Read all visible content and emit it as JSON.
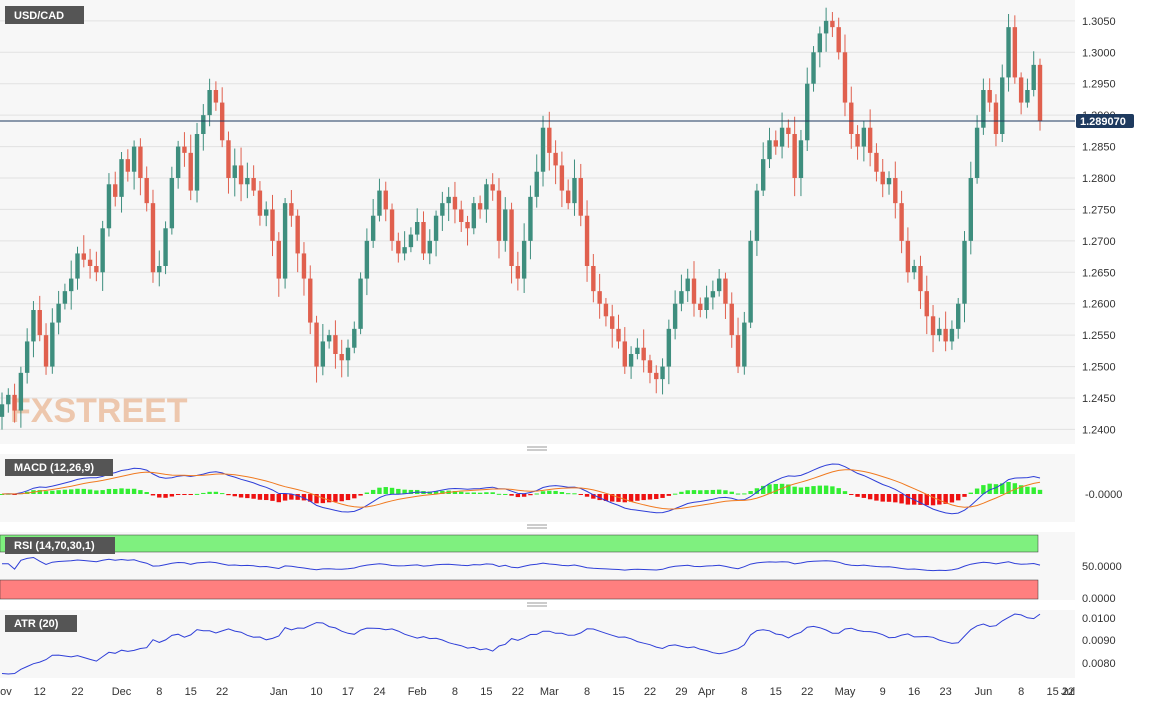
{
  "colors": {
    "up": "#3e8e7e",
    "down": "#e0604e",
    "macd_line": "#2f3fd8",
    "signal_line": "#f07a20",
    "hist_pos": "#33ee33",
    "hist_neg": "#ee1111",
    "rsi_line": "#2f3fd8",
    "overbought": "#7ff07f",
    "oversold": "#ff7f7f",
    "atr_line": "#2f3fd8",
    "label_bg": "#555555",
    "price_line": "#1e3a5f"
  },
  "chart_data": [
    {
      "type": "candlestick",
      "title": "USD/CAD",
      "watermark": "FXSTREET",
      "ylim": [
        1.238,
        1.308
      ],
      "yticks": [
        "1.2400",
        "1.2450",
        "1.2500",
        "1.2550",
        "1.2600",
        "1.2650",
        "1.2700",
        "1.2750",
        "1.2800",
        "1.2850",
        "1.2900",
        "1.2950",
        "1.3000",
        "1.3050"
      ],
      "current_price": 1.28907,
      "current_price_label": "1.289070",
      "xticks": [
        "Nov",
        "12",
        "22",
        "Dec",
        "8",
        "15",
        "22",
        "Jan",
        "10",
        "17",
        "24",
        "Feb",
        "8",
        "15",
        "22",
        "Mar",
        "8",
        "15",
        "22",
        "29",
        "Apr",
        "8",
        "15",
        "22",
        "May",
        "9",
        "16",
        "23",
        "Jun",
        "8",
        "15",
        "22",
        "Jul"
      ],
      "xtick_index": [
        0,
        6,
        12,
        19,
        25,
        30,
        35,
        44,
        50,
        55,
        60,
        66,
        72,
        77,
        82,
        87,
        93,
        98,
        103,
        108,
        112,
        118,
        123,
        128,
        134,
        140,
        145,
        150,
        156,
        162,
        167,
        172,
        180
      ],
      "series_sketch": {
        "closes": [
          1.244,
          1.2455,
          1.243,
          1.249,
          1.254,
          1.259,
          1.255,
          1.25,
          1.257,
          1.26,
          1.262,
          1.264,
          1.268,
          1.267,
          1.266,
          1.265,
          1.272,
          1.279,
          1.277,
          1.283,
          1.281,
          1.285,
          1.28,
          1.276,
          1.265,
          1.266,
          1.272,
          1.28,
          1.285,
          1.284,
          1.278,
          1.287,
          1.29,
          1.294,
          1.292,
          1.286,
          1.28,
          1.282,
          1.279,
          1.28,
          1.278,
          1.274,
          1.275,
          1.27,
          1.264,
          1.276,
          1.274,
          1.268,
          1.264,
          1.257,
          1.25,
          1.254,
          1.255,
          1.252,
          1.251,
          1.253,
          1.256,
          1.264,
          1.27,
          1.274,
          1.278,
          1.275,
          1.27,
          1.268,
          1.269,
          1.271,
          1.273,
          1.268,
          1.27,
          1.274,
          1.276,
          1.277,
          1.275,
          1.273,
          1.272,
          1.276,
          1.275,
          1.279,
          1.278,
          1.27,
          1.275,
          1.266,
          1.264,
          1.27,
          1.277,
          1.281,
          1.288,
          1.284,
          1.282,
          1.278,
          1.276,
          1.28,
          1.274,
          1.266,
          1.262,
          1.26,
          1.258,
          1.256,
          1.254,
          1.25,
          1.252,
          1.253,
          1.251,
          1.249,
          1.248,
          1.25,
          1.256,
          1.26,
          1.262,
          1.264,
          1.26,
          1.259,
          1.261,
          1.262,
          1.264,
          1.26,
          1.255,
          1.25,
          1.257,
          1.27,
          1.278,
          1.283,
          1.286,
          1.285,
          1.288,
          1.287,
          1.28,
          1.286,
          1.295,
          1.3,
          1.303,
          1.305,
          1.304,
          1.3,
          1.292,
          1.287,
          1.285,
          1.288,
          1.284,
          1.281,
          1.279,
          1.28,
          1.276,
          1.27,
          1.265,
          1.266,
          1.262,
          1.258,
          1.255,
          1.256,
          1.254,
          1.256,
          1.26,
          1.27,
          1.28,
          1.288,
          1.294,
          1.292,
          1.287,
          1.296,
          1.304,
          1.296,
          1.292,
          1.294,
          1.298,
          1.289
        ]
      }
    },
    {
      "type": "line+bar",
      "title": "MACD (12,26,9)",
      "yticks": [
        "-0.0000"
      ]
    },
    {
      "type": "line",
      "title": "RSI (14,70,30,1)",
      "yticks": [
        "50.0000",
        "0.0000"
      ]
    },
    {
      "type": "line",
      "title": "ATR (20)",
      "yticks": [
        "0.0100",
        "0.0090",
        "0.0080"
      ]
    }
  ]
}
